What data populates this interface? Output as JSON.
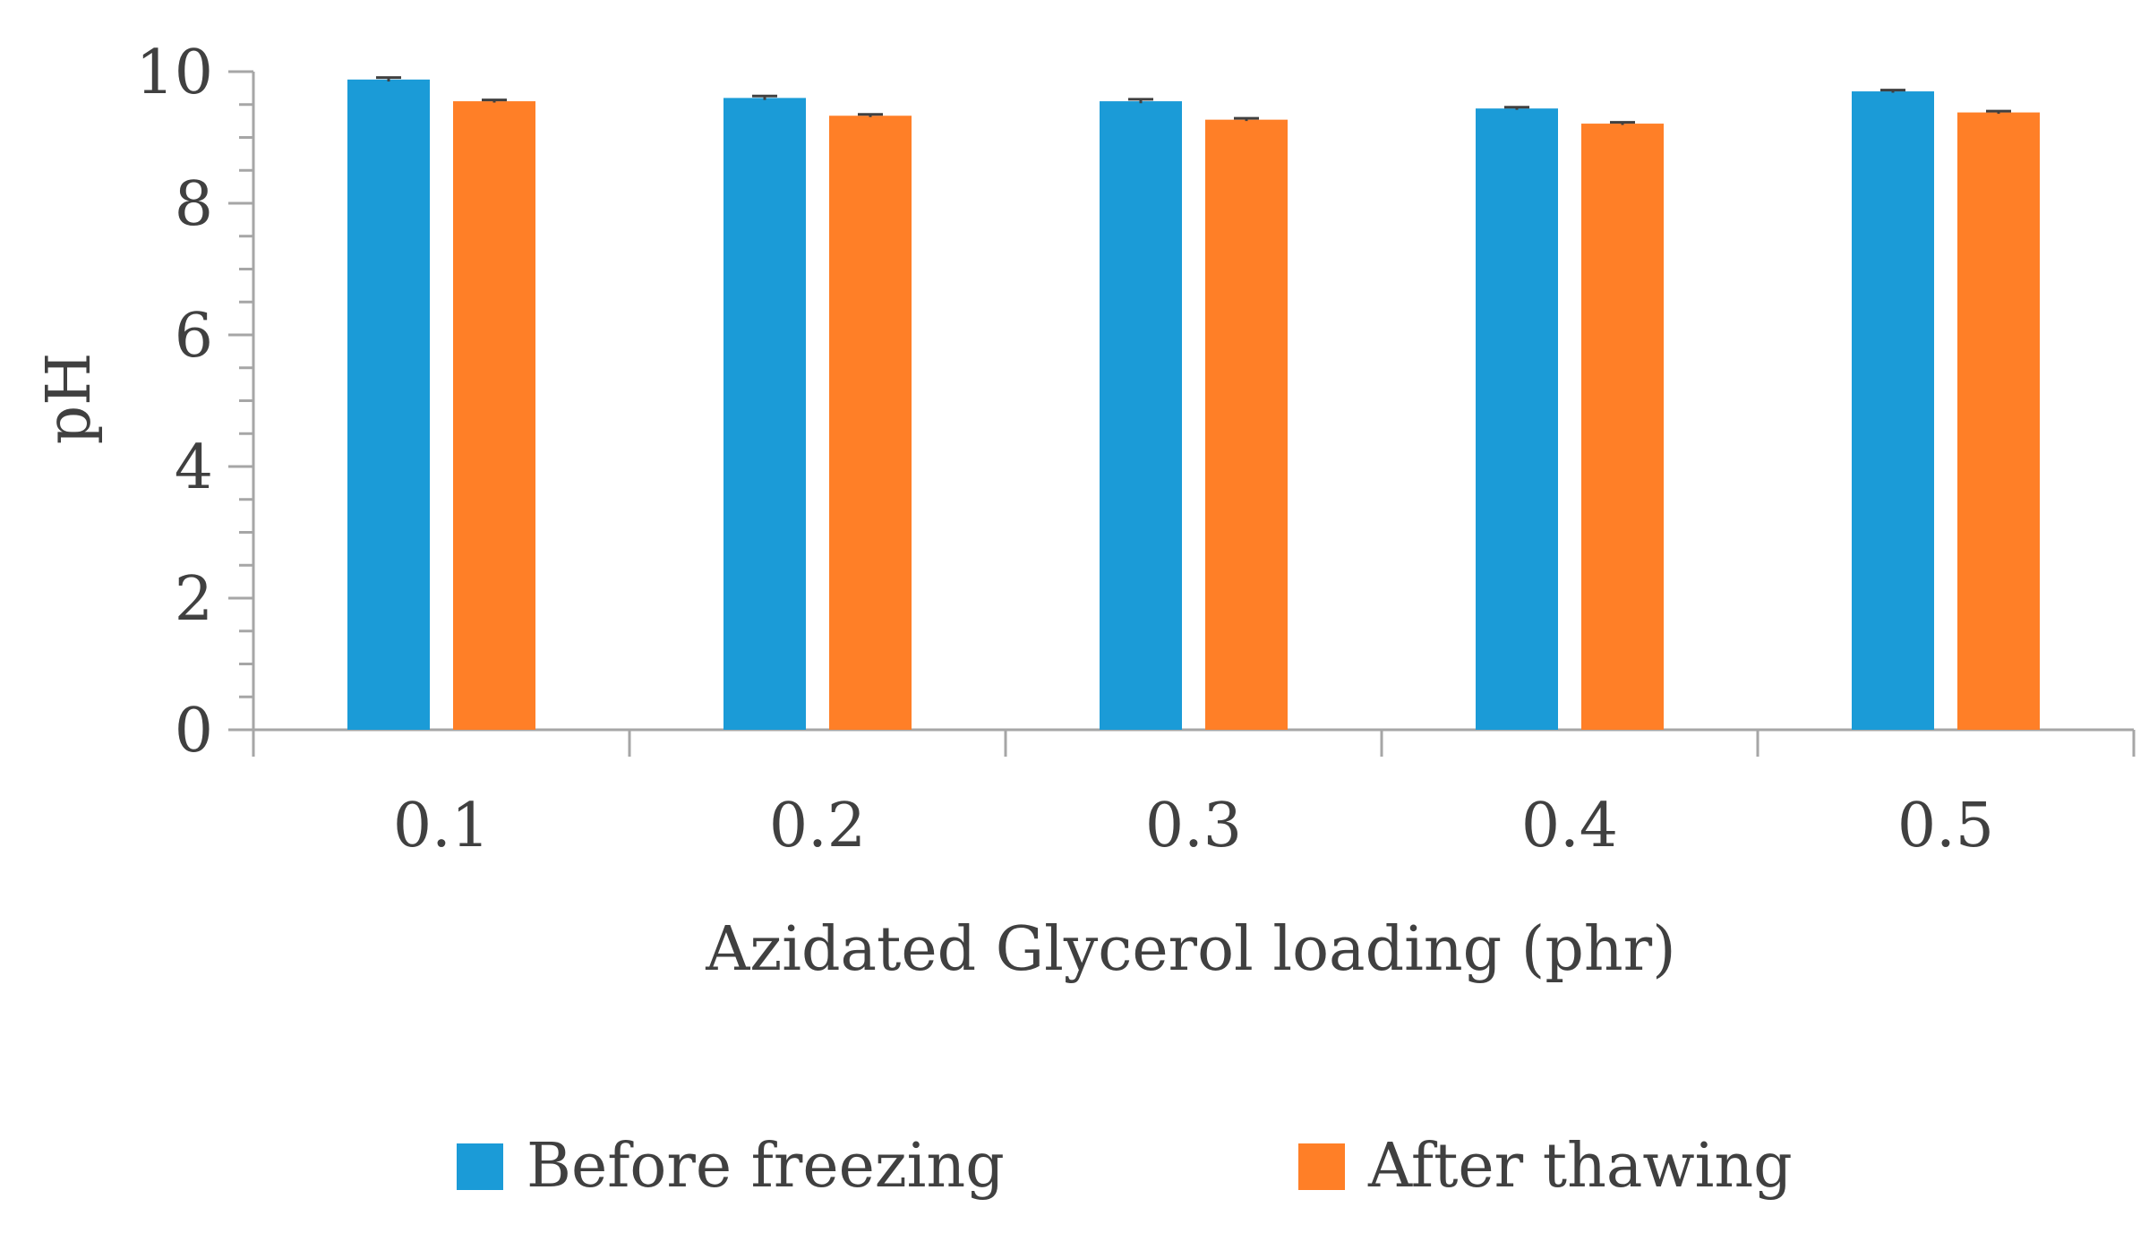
{
  "chart_data": {
    "type": "bar",
    "title": "",
    "xlabel": "Azidated Glycerol loading (phr)",
    "ylabel": "pH",
    "categories": [
      "0.1",
      "0.2",
      "0.3",
      "0.4",
      "0.5"
    ],
    "ylim": [
      0,
      10
    ],
    "yticks": [
      "0",
      "2",
      "4",
      "6",
      "8",
      "10"
    ],
    "grid": false,
    "legend_position": "bottom",
    "series": [
      {
        "name": "Before freezing",
        "color": "#1b9bd7",
        "values": [
          9.88,
          9.6,
          9.55,
          9.44,
          9.7
        ],
        "errors": [
          0.03,
          0.03,
          0.03,
          0.02,
          0.02
        ]
      },
      {
        "name": "After thawing",
        "color": "#ff7f27",
        "values": [
          9.55,
          9.33,
          9.27,
          9.21,
          9.38
        ],
        "errors": [
          0.02,
          0.02,
          0.02,
          0.02,
          0.02
        ]
      }
    ]
  }
}
